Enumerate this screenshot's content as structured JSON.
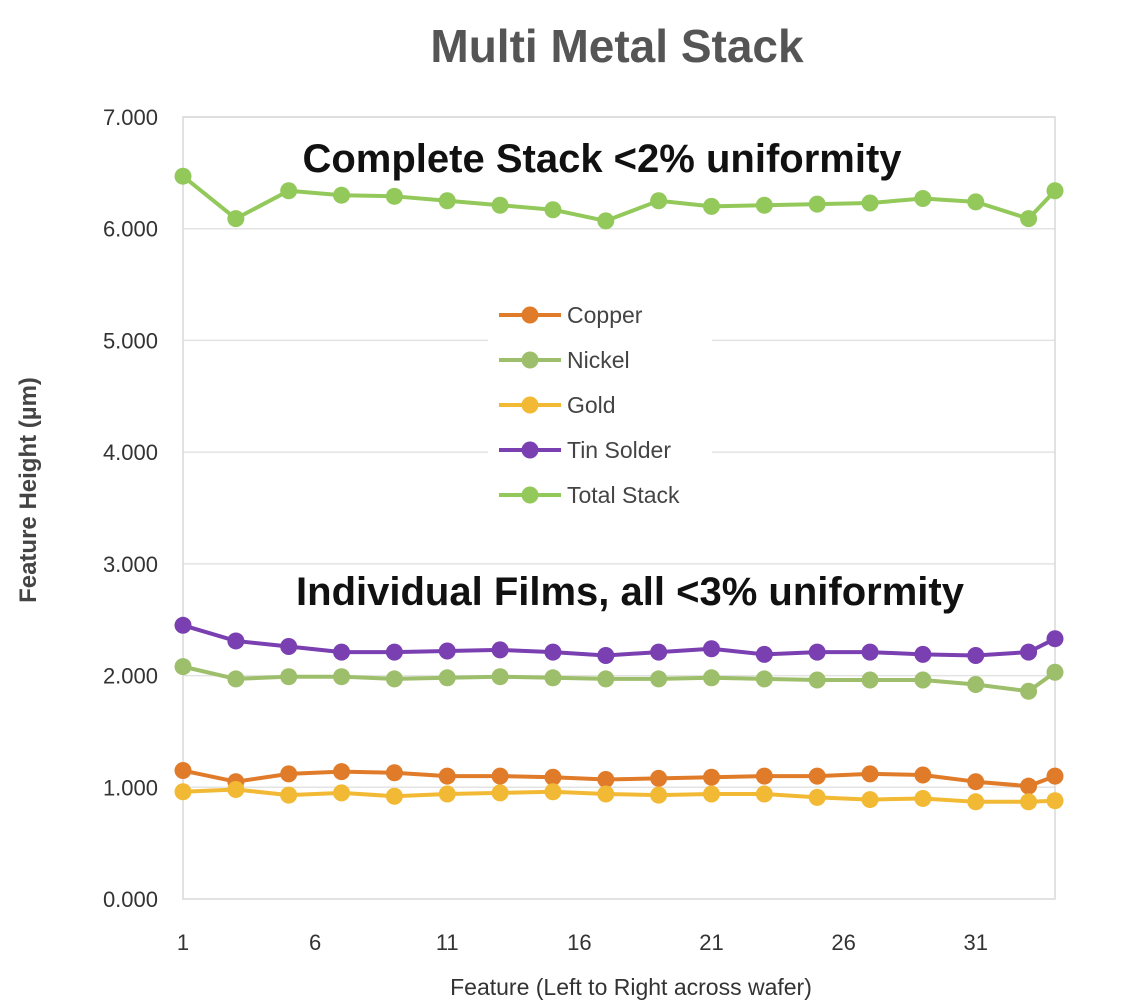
{
  "chart_data": {
    "type": "line",
    "title": "Multi Metal Stack",
    "xlabel": "Feature (Left to Right across wafer)",
    "ylabel": "Feature Height (µm)",
    "x": [
      1,
      3,
      5,
      7,
      9,
      11,
      13,
      15,
      17,
      19,
      21,
      23,
      25,
      27,
      29,
      31,
      33,
      34
    ],
    "xticks": [
      "1",
      "6",
      "11",
      "16",
      "21",
      "26",
      "31"
    ],
    "xtick_values": [
      1,
      6,
      11,
      16,
      21,
      26,
      31
    ],
    "xlim": [
      1,
      34
    ],
    "yticks": [
      "0.000",
      "1.000",
      "2.000",
      "3.000",
      "4.000",
      "5.000",
      "6.000",
      "7.000"
    ],
    "ylim": [
      0,
      7
    ],
    "grid": true,
    "legend_position": "center",
    "annotations": [
      "Complete Stack <2% uniformity",
      "Individual Films, all <3% uniformity"
    ],
    "series": [
      {
        "name": "Copper",
        "color": "#e07b2a",
        "values": [
          1.15,
          1.05,
          1.12,
          1.14,
          1.13,
          1.1,
          1.1,
          1.09,
          1.07,
          1.08,
          1.09,
          1.1,
          1.1,
          1.12,
          1.11,
          1.05,
          1.01,
          1.1
        ]
      },
      {
        "name": "Nickel",
        "color": "#9dbe6a",
        "values": [
          2.08,
          1.97,
          1.99,
          1.99,
          1.97,
          1.98,
          1.99,
          1.98,
          1.97,
          1.97,
          1.98,
          1.97,
          1.96,
          1.96,
          1.96,
          1.92,
          1.86,
          2.03
        ]
      },
      {
        "name": "Gold",
        "color": "#f2b934",
        "values": [
          0.96,
          0.98,
          0.93,
          0.95,
          0.92,
          0.94,
          0.95,
          0.96,
          0.94,
          0.93,
          0.94,
          0.94,
          0.91,
          0.89,
          0.9,
          0.87,
          0.87,
          0.88
        ]
      },
      {
        "name": "Tin Solder",
        "color": "#7a3fb0",
        "values": [
          2.45,
          2.31,
          2.26,
          2.21,
          2.21,
          2.22,
          2.23,
          2.21,
          2.18,
          2.21,
          2.24,
          2.19,
          2.21,
          2.21,
          2.19,
          2.18,
          2.21,
          2.33
        ]
      },
      {
        "name": "Total Stack",
        "color": "#93c85a",
        "values": [
          6.47,
          6.09,
          6.34,
          6.3,
          6.29,
          6.25,
          6.21,
          6.17,
          6.07,
          6.25,
          6.2,
          6.21,
          6.22,
          6.23,
          6.27,
          6.24,
          6.09,
          6.34
        ]
      }
    ]
  }
}
